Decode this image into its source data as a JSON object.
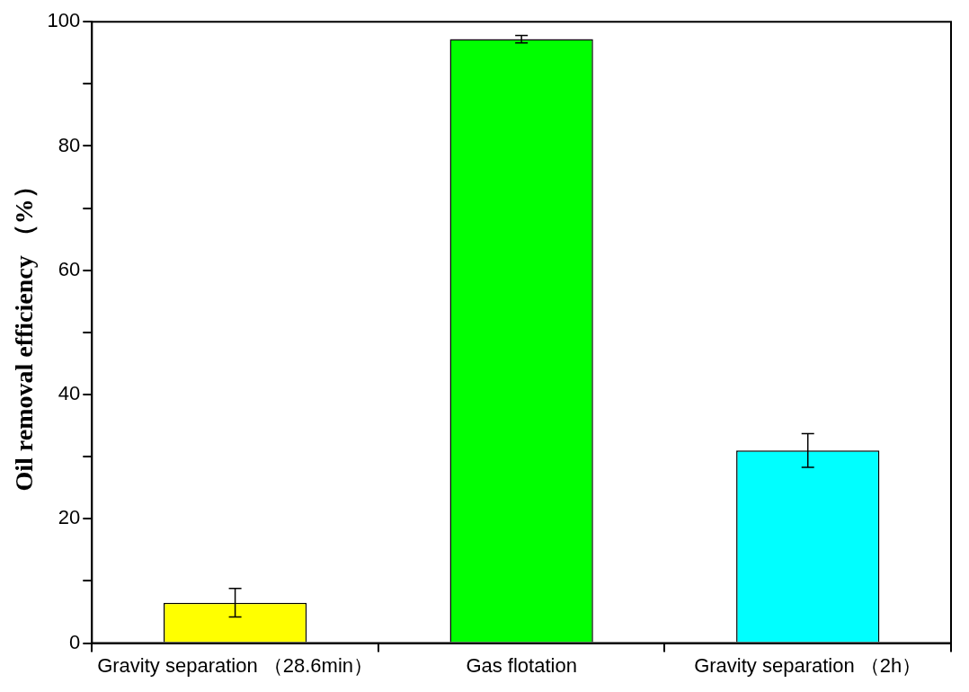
{
  "chart_data": {
    "type": "bar",
    "ylabel": "Oil removal efficiency （%）",
    "categories": [
      "Gravity separation （28.6min）",
      "Gas flotation",
      "Gravity separation （2h）"
    ],
    "values": [
      6.5,
      97.2,
      31.0
    ],
    "colors": [
      "#ffff00",
      "#00ff00",
      "#00ffff"
    ],
    "errors": [
      2.3,
      0.6,
      2.7
    ],
    "ylim": [
      0,
      100
    ],
    "yticks": [
      0,
      {
        "value": 10,
        "label": null
      },
      20,
      {
        "value": 30,
        "label": null
      },
      40,
      {
        "value": 50,
        "label": null
      },
      60,
      {
        "value": 70,
        "label": null
      },
      80,
      {
        "value": 90,
        "label": null
      },
      100
    ],
    "grid": false,
    "legend": false
  }
}
